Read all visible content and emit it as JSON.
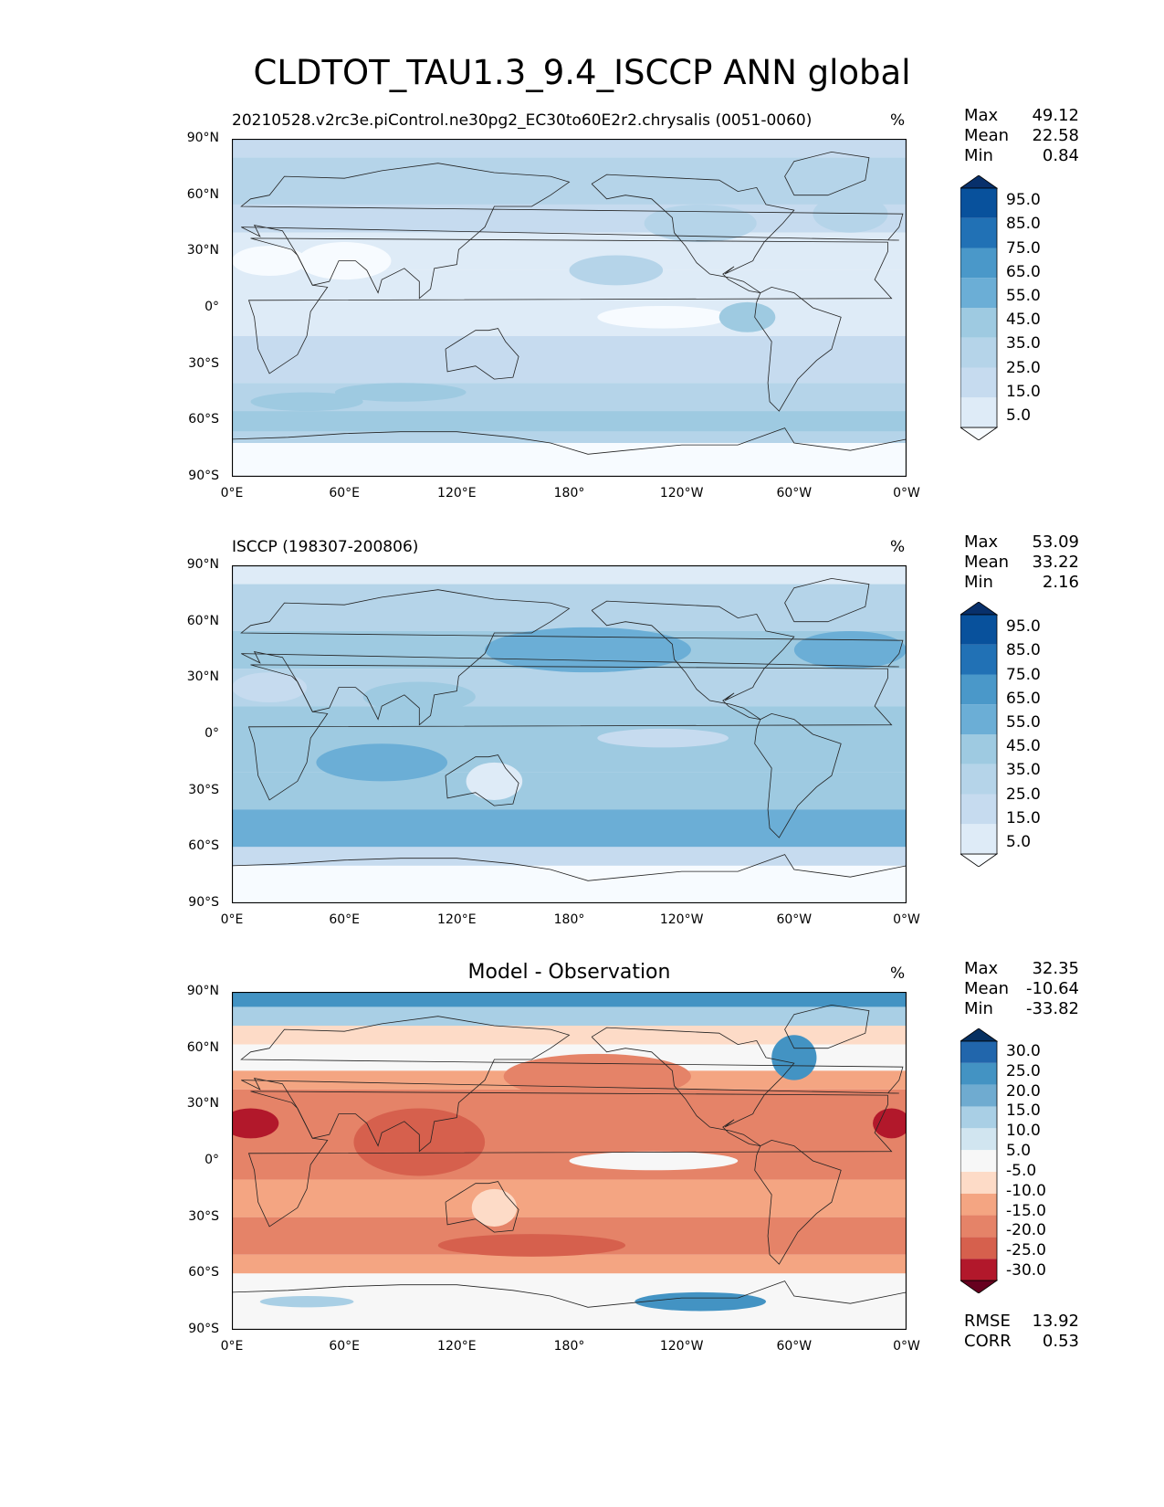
{
  "title": "CLDTOT_TAU1.3_9.4_ISCCP ANN global",
  "lat_ticks": [
    "90°N",
    "60°N",
    "30°N",
    "0°",
    "30°S",
    "60°S",
    "90°S"
  ],
  "lon_ticks": [
    "0°E",
    "60°E",
    "120°E",
    "180°",
    "120°W",
    "60°W",
    "0°W"
  ],
  "panels": [
    {
      "id": "test",
      "subtitle": "20210528.v2rc3e.piControl.ne30pg2_EC30to60E2r2.chrysalis (0051-0060)",
      "unit": "%",
      "stats": [
        {
          "label": "Max",
          "value": "49.12"
        },
        {
          "label": "Mean",
          "value": "22.58"
        },
        {
          "label": "Min",
          "value": "0.84"
        }
      ],
      "colorbar": {
        "colors": [
          "#f7fbff",
          "#deebf7",
          "#c6dbef",
          "#b5d4e9",
          "#9ecae1",
          "#6baed6",
          "#4a98c9",
          "#2171b5",
          "#08519c",
          "#08306b"
        ],
        "labels": [
          "95.0",
          "85.0",
          "75.0",
          "65.0",
          "55.0",
          "45.0",
          "35.0",
          "25.0",
          "15.0",
          "5.0"
        ]
      }
    },
    {
      "id": "reference",
      "subtitle": "ISCCP (198307-200806)",
      "unit": "%",
      "stats": [
        {
          "label": "Max",
          "value": "53.09"
        },
        {
          "label": "Mean",
          "value": "33.22"
        },
        {
          "label": "Min",
          "value": "2.16"
        }
      ],
      "colorbar": {
        "colors": [
          "#f7fbff",
          "#deebf7",
          "#c6dbef",
          "#b5d4e9",
          "#9ecae1",
          "#6baed6",
          "#4a98c9",
          "#2171b5",
          "#08519c",
          "#08306b"
        ],
        "labels": [
          "95.0",
          "85.0",
          "75.0",
          "65.0",
          "55.0",
          "45.0",
          "35.0",
          "25.0",
          "15.0",
          "5.0"
        ]
      }
    },
    {
      "id": "difference",
      "subtitle": "Model - Observation",
      "unit": "%",
      "stats": [
        {
          "label": "Max",
          "value": "32.35"
        },
        {
          "label": "Mean",
          "value": "-10.64"
        },
        {
          "label": "Min",
          "value": "-33.82"
        }
      ],
      "extra_stats": [
        {
          "label": "RMSE",
          "value": "13.92"
        },
        {
          "label": "CORR",
          "value": "0.53"
        }
      ],
      "colorbar": {
        "colors": [
          "#67001f",
          "#b2182b",
          "#d6604d",
          "#e58368",
          "#f4a582",
          "#fddbc7",
          "#f7f7f7",
          "#d1e5f0",
          "#a9cfe5",
          "#6fabd0",
          "#4393c3",
          "#2166ac",
          "#053061"
        ],
        "labels": [
          "30.0",
          "25.0",
          "20.0",
          "15.0",
          "10.0",
          "5.0",
          "-5.0",
          "-10.0",
          "-15.0",
          "-20.0",
          "-25.0",
          "-30.0"
        ]
      }
    }
  ],
  "chart_data": [
    {
      "type": "heatmap",
      "title": "20210528.v2rc3e.piControl.ne30pg2_EC30to60E2r2.chrysalis (0051-0060)",
      "unit": "%",
      "x_ticks": [
        "0°E",
        "60°E",
        "120°E",
        "180°",
        "120°W",
        "60°W",
        "0°W"
      ],
      "y_ticks": [
        "90°N",
        "60°N",
        "30°N",
        "0°",
        "30°S",
        "60°S",
        "90°S"
      ],
      "levels": [
        5,
        15,
        25,
        35,
        45,
        55,
        65,
        75,
        85,
        95
      ],
      "max": 49.12,
      "mean": 22.58,
      "min": 0.84
    },
    {
      "type": "heatmap",
      "title": "ISCCP (198307-200806)",
      "unit": "%",
      "x_ticks": [
        "0°E",
        "60°E",
        "120°E",
        "180°",
        "120°W",
        "60°W",
        "0°W"
      ],
      "y_ticks": [
        "90°N",
        "60°N",
        "30°N",
        "0°",
        "30°S",
        "60°S",
        "90°S"
      ],
      "levels": [
        5,
        15,
        25,
        35,
        45,
        55,
        65,
        75,
        85,
        95
      ],
      "max": 53.09,
      "mean": 33.22,
      "min": 2.16
    },
    {
      "type": "heatmap",
      "title": "Model - Observation",
      "unit": "%",
      "x_ticks": [
        "0°E",
        "60°E",
        "120°E",
        "180°",
        "120°W",
        "60°W",
        "0°W"
      ],
      "y_ticks": [
        "90°N",
        "60°N",
        "30°N",
        "0°",
        "30°S",
        "60°S",
        "90°S"
      ],
      "levels": [
        -30,
        -25,
        -20,
        -15,
        -10,
        -5,
        5,
        10,
        15,
        20,
        25,
        30
      ],
      "max": 32.35,
      "mean": -10.64,
      "min": -33.82,
      "rmse": 13.92,
      "corr": 0.53
    }
  ]
}
